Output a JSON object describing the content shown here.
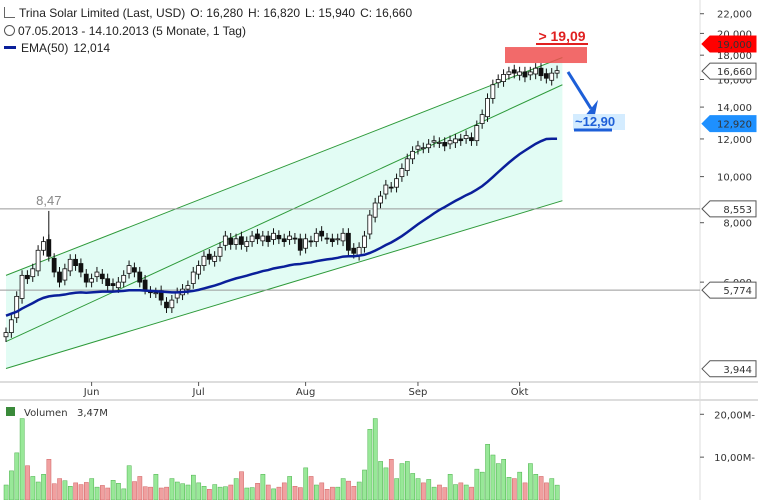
{
  "header": {
    "instrument": "Trina Solar Limited (Last, USD)",
    "open": "O: 16,280",
    "high": "H: 16,820",
    "low": "L: 15,940",
    "close": "C: 16,660",
    "range": "07.05.2013 - 14.10.2013 (5 Monate, 1 Tag)",
    "ema_label": "EMA(50)",
    "ema_value": "12,014",
    "volume_label": "Volumen",
    "volume_value": "3,47M"
  },
  "annotations": {
    "high_mark": "8,47",
    "target": "> 19,09",
    "projection": "~12,90"
  },
  "colors": {
    "candle": "#111111",
    "ema": "#0a1f9a",
    "channel": "#2e9a3a",
    "channel_fill": "#d8fbf0",
    "target_box": "#f05050",
    "projection": "#1d5fd8",
    "volume_up": "#98e898",
    "volume_down": "#f0a0a0",
    "price_tag_red": "#ff0000",
    "price_tag_blue": "#1e90ff"
  },
  "chart_data": {
    "type": "candlestick",
    "x_ticks": [
      "Jun",
      "Jul",
      "Aug",
      "Sep",
      "Okt"
    ],
    "y_scale": "log",
    "y_ticks": [
      "22,000",
      "20,000",
      "18,000",
      "16,000",
      "14,000",
      "12,000",
      "10,000",
      "8,000",
      "6,000"
    ],
    "price_tags": [
      {
        "label": "19,000",
        "value": 19.0,
        "style": "red"
      },
      {
        "label": "16,660",
        "value": 16.66,
        "style": "plain"
      },
      {
        "label": "12,920",
        "value": 12.92,
        "style": "blue"
      },
      {
        "label": "8,553",
        "value": 8.553,
        "style": "plain"
      },
      {
        "label": "5,774",
        "value": 5.774,
        "style": "plain"
      },
      {
        "label": "3,944",
        "value": 3.944,
        "style": "plain"
      }
    ],
    "close": [
      4.7,
      5.0,
      5.6,
      6.2,
      6.1,
      6.4,
      7.0,
      7.3,
      6.8,
      6.3,
      6.0,
      6.4,
      6.7,
      6.5,
      6.3,
      6.0,
      6.1,
      6.3,
      6.1,
      5.9,
      5.9,
      6.0,
      6.2,
      6.5,
      6.3,
      6.0,
      5.8,
      5.7,
      5.7,
      5.5,
      5.3,
      5.5,
      5.7,
      5.8,
      5.9,
      6.3,
      6.5,
      6.8,
      6.7,
      6.8,
      7.1,
      7.5,
      7.2,
      7.4,
      7.2,
      7.3,
      7.5,
      7.4,
      7.5,
      7.3,
      7.6,
      7.4,
      7.3,
      7.5,
      7.4,
      7.0,
      7.4,
      7.3,
      7.6,
      7.5,
      7.4,
      7.3,
      7.4,
      7.6,
      7.0,
      6.9,
      7.1,
      7.5,
      8.3,
      8.8,
      9.1,
      9.6,
      9.5,
      9.9,
      10.4,
      10.9,
      11.3,
      11.6,
      11.5,
      11.7,
      11.9,
      11.8,
      11.6,
      11.9,
      12.0,
      11.9,
      12.2,
      11.9,
      12.8,
      13.5,
      14.6,
      15.6,
      16.0,
      16.4,
      16.6,
      16.5,
      16.6,
      16.2,
      16.6,
      16.9,
      16.3,
      16.1,
      16.5,
      16.7
    ],
    "ema50": [
      5.1,
      5.15,
      5.2,
      5.28,
      5.35,
      5.42,
      5.5,
      5.56,
      5.6,
      5.62,
      5.63,
      5.65,
      5.68,
      5.7,
      5.71,
      5.7,
      5.71,
      5.72,
      5.73,
      5.73,
      5.73,
      5.74,
      5.75,
      5.77,
      5.77,
      5.77,
      5.76,
      5.75,
      5.74,
      5.73,
      5.72,
      5.71,
      5.71,
      5.72,
      5.73,
      5.75,
      5.78,
      5.82,
      5.86,
      5.9,
      5.95,
      6.01,
      6.06,
      6.11,
      6.15,
      6.19,
      6.24,
      6.28,
      6.33,
      6.36,
      6.41,
      6.44,
      6.47,
      6.51,
      6.54,
      6.55,
      6.58,
      6.6,
      6.64,
      6.67,
      6.7,
      6.72,
      6.75,
      6.79,
      6.8,
      6.8,
      6.82,
      6.85,
      6.91,
      6.99,
      7.08,
      7.18,
      7.27,
      7.38,
      7.5,
      7.64,
      7.79,
      7.94,
      8.08,
      8.22,
      8.37,
      8.51,
      8.63,
      8.76,
      8.89,
      9.01,
      9.14,
      9.25,
      9.39,
      9.55,
      9.75,
      9.98,
      10.22,
      10.46,
      10.7,
      10.93,
      11.15,
      11.34,
      11.53,
      11.72,
      11.87,
      12.0,
      12.01,
      12.014
    ],
    "volume_millions": [
      3.5,
      6.8,
      11.0,
      19.0,
      8.0,
      5.5,
      4.2,
      6.0,
      9.5,
      3.8,
      5.0,
      4.5,
      3.2,
      4.0,
      3.6,
      4.1,
      5.0,
      3.0,
      3.4,
      2.8,
      4.6,
      3.9,
      2.6,
      8.0,
      4.3,
      5.5,
      3.1,
      3.0,
      6.0,
      2.8,
      3.0,
      5.0,
      4.2,
      3.8,
      3.5,
      5.8,
      4.0,
      3.2,
      2.5,
      3.6,
      3.0,
      3.1,
      3.5,
      5.0,
      6.6,
      2.8,
      2.9,
      3.9,
      6.0,
      3.5,
      2.6,
      3.0,
      4.0,
      5.5,
      3.2,
      2.9,
      7.5,
      5.5,
      3.5,
      4.0,
      2.5,
      3.0,
      3.0,
      5.0,
      4.4,
      3.2,
      4.2,
      7.0,
      16.5,
      19.0,
      9.0,
      7.5,
      9.5,
      5.0,
      8.5,
      9.0,
      6.2,
      5.0,
      4.0,
      4.8,
      3.0,
      3.5,
      2.9,
      6.0,
      3.6,
      4.0,
      3.5,
      3.0,
      7.2,
      6.5,
      13.0,
      10.5,
      8.5,
      9.5,
      5.3,
      5.0,
      6.5,
      4.0,
      8.5,
      6.0,
      5.5,
      4.0,
      5.0,
      3.47
    ],
    "volume_y_ticks": [
      "20,00M-",
      "10,00M-"
    ],
    "channel": [
      {
        "points": [
          [
            0,
            6.2
          ],
          [
            104,
            17.8
          ]
        ]
      },
      {
        "points": [
          [
            0,
            4.5
          ],
          [
            104,
            15.6
          ]
        ]
      },
      {
        "points": [
          [
            0,
            3.95
          ],
          [
            104,
            8.9
          ]
        ]
      }
    ]
  }
}
